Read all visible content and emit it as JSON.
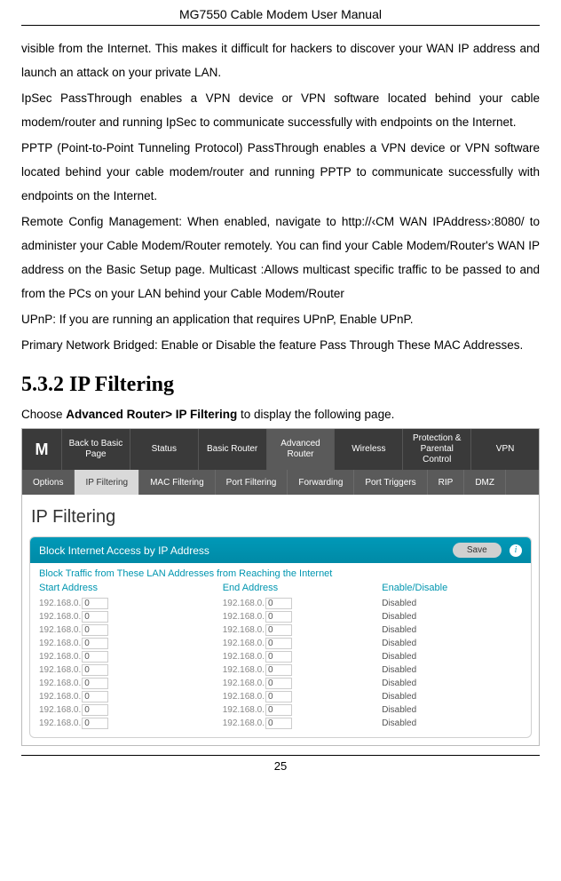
{
  "doc": {
    "header": "MG7550 Cable Modem User Manual",
    "page_number": "25",
    "paragraphs": [
      "visible from the Internet. This makes it difficult for hackers to discover your WAN IP address and launch an attack on your private LAN.",
      "IpSec PassThrough enables a VPN device or VPN software located behind your cable modem/router and running IpSec to communicate successfully with endpoints on the Internet.",
      "PPTP (Point-to-Point Tunneling Protocol) PassThrough enables a VPN device or VPN software located behind your cable modem/router and running PPTP to communicate successfully with endpoints on the Internet.",
      "Remote Config Management: When enabled, navigate to http://‹CM WAN IPAddress›:8080/ to administer your Cable Modem/Router remotely. You can find your Cable Modem/Router's WAN IP address on the Basic Setup page. Multicast :Allows multicast specific traffic to be passed to and from the PCs on your LAN behind your Cable Modem/Router",
      "UPnP: If you are running an application that requires UPnP, Enable UPnP.",
      "Primary Network Bridged: Enable or Disable the feature Pass Through These MAC Addresses."
    ],
    "section_heading": "5.3.2   IP Filtering",
    "instruction_pre": "Choose ",
    "instruction_bold": "Advanced Router> IP Filtering",
    "instruction_post": " to display the following page."
  },
  "ui": {
    "logo": "M",
    "main_nav": [
      "Back to Basic Page",
      "Status",
      "Basic Router",
      "Advanced Router",
      "Wireless",
      "Protection & Parental Control",
      "VPN"
    ],
    "main_nav_active_index": 3,
    "sub_nav": [
      "Options",
      "IP Filtering",
      "MAC Filtering",
      "Port Filtering",
      "Forwarding",
      "Port Triggers",
      "RIP",
      "DMZ"
    ],
    "sub_nav_active_index": 1,
    "panel_title": "IP Filtering",
    "panel_header": "Block Internet Access by IP Address",
    "save_label": "Save",
    "info_symbol": "i",
    "panel_sub": "Block Traffic from These LAN Addresses from Reaching the Internet",
    "columns": {
      "start": "Start Address",
      "end": "End Address",
      "enable": "Enable/Disable"
    },
    "ip_prefix": "192.168.0.",
    "default_octet": "0",
    "status_label": "Disabled",
    "row_count": 10,
    "colors": {
      "nav_bg": "#3a3a3a",
      "nav_active": "#5a5a5a",
      "subnav_bg": "#5a5a5a",
      "subnav_active_bg": "#d9d9d9",
      "teal": "#0099b8",
      "teal_text": "#0096b0",
      "border": "#d0d0d0"
    }
  }
}
